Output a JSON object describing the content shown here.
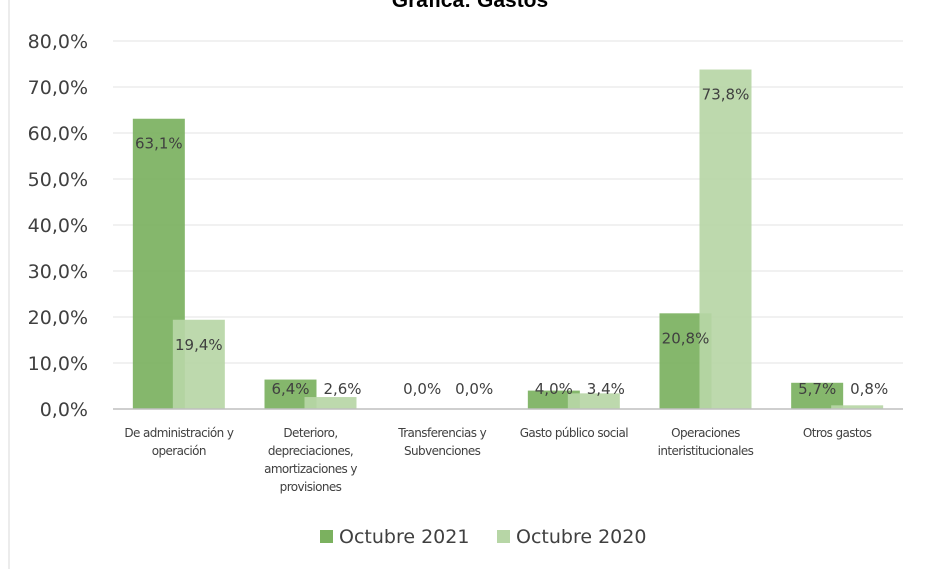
{
  "chart_data": {
    "type": "bar",
    "title": "Gráfica: Gastos",
    "xlabel": "",
    "ylabel": "",
    "ylim": [
      0,
      80
    ],
    "y_ticks": [
      "0,0%",
      "10,0%",
      "20,0%",
      "30,0%",
      "40,0%",
      "50,0%",
      "60,0%",
      "70,0%",
      "80,0%"
    ],
    "categories": [
      [
        "De administración y",
        "operación"
      ],
      [
        "Deterioro,",
        "depreciaciones,",
        "amortizaciones y",
        "provisiones"
      ],
      [
        "Transferencias y",
        "Subvenciones"
      ],
      [
        "Gasto público social"
      ],
      [
        "Operaciones",
        "interistitucionales"
      ],
      [
        "Otros gastos"
      ]
    ],
    "series": [
      {
        "name": "Octubre 2021",
        "values": [
          63.1,
          6.4,
          0.0,
          4.0,
          20.8,
          5.7
        ],
        "labels": [
          "63,1%",
          "6,4%",
          "0,0%",
          "4,0%",
          "20,8%",
          "5,7%"
        ]
      },
      {
        "name": "Octubre 2020",
        "values": [
          19.4,
          2.6,
          0.0,
          3.4,
          73.8,
          0.8
        ],
        "labels": [
          "19,4%",
          "2,6%",
          "0,0%",
          "3,4%",
          "73,8%",
          "0,8%"
        ]
      }
    ],
    "colors": [
      "#7bb15f",
      "#b7d6a6"
    ],
    "grid": true,
    "legend_position": "bottom"
  }
}
